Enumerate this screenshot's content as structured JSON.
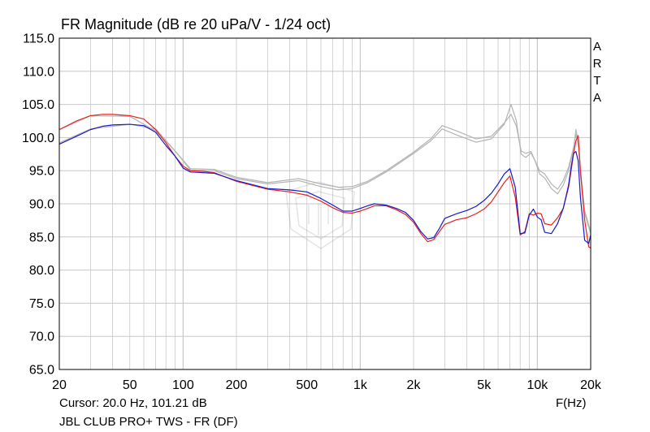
{
  "header": {
    "title": "FR Magnitude (dB re 20 uPa/V - 1/24 oct)"
  },
  "side_label": "ARTA",
  "footer": {
    "cursor": "Cursor: 20.0 Hz, 101.21 dB",
    "device": "JBL CLUB PRO+ TWS - FR (DF)",
    "xunit": "F(Hz)"
  },
  "colors": {
    "red": "#e8211b",
    "blue": "#1a1acc",
    "gray": "#b4b4b4",
    "grid": "#c8c8c8"
  },
  "chart_data": {
    "type": "line",
    "title": "FR Magnitude (dB re 20 uPa/V - 1/24 oct)",
    "xlabel": "F(Hz)",
    "ylabel": "",
    "xscale": "log",
    "xlim": [
      20,
      20000
    ],
    "ylim": [
      65,
      115
    ],
    "grid": true,
    "x_ticks": [
      20,
      50,
      100,
      200,
      500,
      1000,
      2000,
      5000,
      10000,
      20000
    ],
    "x_tick_labels": [
      "20",
      "50",
      "100",
      "200",
      "500",
      "1k",
      "2k",
      "5k",
      "10k",
      "20k"
    ],
    "y_ticks": [
      65,
      70,
      75,
      80,
      85,
      90,
      95,
      100,
      105,
      110,
      115
    ],
    "y_tick_labels": [
      "65.0",
      "70.0",
      "75.0",
      "80.0",
      "85.0",
      "90.0",
      "95.0",
      "100.0",
      "105.0",
      "110.0",
      "115.0"
    ],
    "series": [
      {
        "color": "#b4b4b4",
        "x": [
          20,
          30,
          50,
          70,
          90,
          110,
          150,
          200,
          300,
          450,
          600,
          750,
          900,
          1100,
          1400,
          2000,
          2500,
          2900,
          3500,
          4500,
          5500,
          6500,
          7100,
          7600,
          8100,
          8600,
          9200,
          9700,
          10300,
          11000,
          12000,
          13000,
          14000,
          15000,
          16000,
          16500,
          17000,
          17600,
          18500,
          19500,
          20000
        ],
        "y": [
          101.2,
          103.3,
          103.2,
          101,
          98,
          95.3,
          95.2,
          94,
          93.2,
          93.8,
          93,
          92.5,
          92.6,
          93.4,
          95,
          97.8,
          99.8,
          101.8,
          101,
          99.8,
          100.2,
          102.2,
          103.5,
          101.8,
          98,
          97.6,
          97.9,
          96.5,
          95,
          94.5,
          93,
          92.2,
          93.5,
          95.5,
          98.5,
          100.5,
          99,
          94,
          88.5,
          86.5,
          85.5
        ]
      },
      {
        "color": "#b4b4b4",
        "x": [
          20,
          30,
          50,
          70,
          90,
          110,
          150,
          200,
          300,
          450,
          600,
          750,
          900,
          1100,
          1400,
          2000,
          2500,
          2900,
          3500,
          4500,
          5500,
          6500,
          7100,
          7600,
          8100,
          8600,
          9200,
          9700,
          10300,
          11000,
          12000,
          13000,
          14000,
          15000,
          16000,
          16500,
          17000,
          17600,
          18500,
          19500,
          20000
        ],
        "y": [
          99.2,
          101.3,
          102,
          101.3,
          98,
          95.1,
          95,
          93.8,
          93,
          93.5,
          92.6,
          92.1,
          92.3,
          93.2,
          94.8,
          97.6,
          99.5,
          101.3,
          100.4,
          99.3,
          99.8,
          102,
          105,
          102.6,
          97.5,
          97,
          97.7,
          96.5,
          94.5,
          93.9,
          92.3,
          91.5,
          92.8,
          95,
          98.2,
          101.2,
          99.5,
          94.5,
          89,
          86.8,
          85.8
        ]
      },
      {
        "color": "#e8211b",
        "x": [
          20,
          25,
          30,
          35,
          40,
          50,
          60,
          70,
          80,
          90,
          100,
          110,
          130,
          150,
          200,
          300,
          400,
          500,
          600,
          700,
          800,
          900,
          1000,
          1100,
          1200,
          1400,
          1600,
          1800,
          2000,
          2200,
          2400,
          2600,
          2800,
          3000,
          3500,
          4000,
          4500,
          5000,
          5500,
          6000,
          6500,
          7000,
          7500,
          8000,
          8500,
          9000,
          9500,
          10000,
          10500,
          11000,
          12000,
          13000,
          14000,
          15000,
          15500,
          16000,
          16500,
          17000,
          17500,
          18500,
          19500,
          20000
        ],
        "y": [
          101.2,
          102.5,
          103.3,
          103.5,
          103.5,
          103.3,
          102.8,
          101.2,
          99.2,
          97.2,
          95.7,
          95,
          94.9,
          94.7,
          93.4,
          92.2,
          91.8,
          91.3,
          90.4,
          89.4,
          88.7,
          88.6,
          88.9,
          89.3,
          89.7,
          89.7,
          89.1,
          88.4,
          87.2,
          85.5,
          84.3,
          84.6,
          85.8,
          86.9,
          87.6,
          87.9,
          88.5,
          89.2,
          90.3,
          91.8,
          93.2,
          94.2,
          91,
          85.3,
          85.8,
          88.5,
          88.3,
          88.6,
          88.5,
          87,
          86.8,
          87.9,
          89.3,
          92.5,
          95,
          97.5,
          99.5,
          100.3,
          95,
          87.5,
          83.5,
          83.3
        ]
      },
      {
        "color": "#1a1acc",
        "x": [
          20,
          25,
          30,
          35,
          40,
          50,
          60,
          70,
          80,
          90,
          100,
          110,
          130,
          150,
          200,
          300,
          400,
          500,
          600,
          700,
          800,
          900,
          1000,
          1100,
          1200,
          1400,
          1600,
          1800,
          2000,
          2200,
          2400,
          2600,
          2800,
          3000,
          3500,
          4000,
          4500,
          5000,
          5500,
          6000,
          6500,
          7000,
          7500,
          8000,
          8500,
          9000,
          9500,
          10000,
          10500,
          11000,
          12000,
          13000,
          14000,
          15000,
          15500,
          16000,
          16500,
          17000,
          17500,
          18500,
          19500,
          20000
        ],
        "y": [
          99,
          100.2,
          101.2,
          101.7,
          101.9,
          102,
          101.8,
          100.8,
          98.8,
          97.2,
          95.4,
          94.8,
          94.7,
          94.6,
          93.5,
          92.3,
          92.1,
          91.8,
          90.8,
          89.8,
          88.9,
          88.9,
          89.3,
          89.7,
          90,
          89.8,
          89.3,
          88.7,
          87.5,
          85.8,
          84.7,
          84.9,
          86.3,
          87.8,
          88.5,
          89,
          89.6,
          90.5,
          91.6,
          93,
          94.5,
          95.3,
          92.5,
          85.5,
          85.6,
          88.3,
          89.2,
          88,
          87.6,
          85.7,
          85.5,
          87,
          89.3,
          92.8,
          95.5,
          97.6,
          97.9,
          96.5,
          91,
          84.5,
          84,
          85.3
        ]
      }
    ]
  }
}
